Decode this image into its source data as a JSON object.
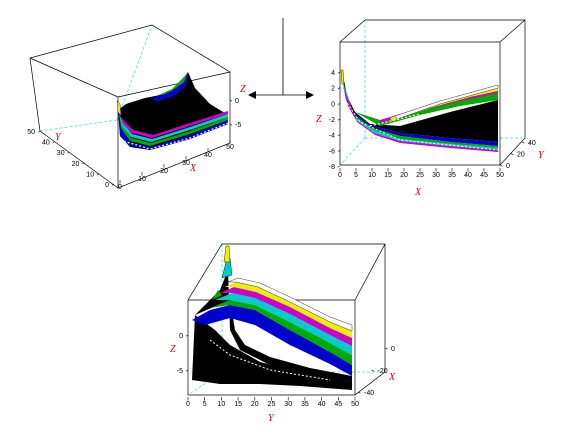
{
  "chart_data": [
    {
      "type": "surface3d",
      "view": "top-left",
      "xlabel": "X",
      "ylabel": "Y",
      "zlabel": "Z",
      "x_ticks": [
        "0",
        "10",
        "20",
        "30",
        "40",
        "50"
      ],
      "y_ticks": [
        "0",
        "10",
        "20",
        "30",
        "40",
        "50"
      ],
      "z_ticks": [
        "0",
        "-5"
      ],
      "xlim": [
        0,
        50
      ],
      "ylim": [
        0,
        50
      ],
      "zlim": [
        -7,
        2
      ],
      "colormap": [
        "#000000",
        "#0000cc",
        "#00aa00",
        "#00cccc",
        "#cc0000",
        "#cc00cc",
        "#eeee00",
        "#ffffff"
      ]
    },
    {
      "type": "surface3d",
      "view": "top-right",
      "xlabel": "X",
      "ylabel": "Y",
      "zlabel": "Z",
      "x_ticks": [
        "0",
        "5",
        "10",
        "15",
        "20",
        "25",
        "30",
        "35",
        "40",
        "45",
        "50"
      ],
      "y_ticks": [
        "0",
        "20",
        "40"
      ],
      "z_ticks": [
        "4",
        "2",
        "0",
        "-2",
        "-4",
        "-6",
        "-8"
      ],
      "xlim": [
        0,
        50
      ],
      "ylim": [
        0,
        50
      ],
      "zlim": [
        -8,
        4
      ],
      "colormap": [
        "#000000",
        "#0000cc",
        "#00aa00",
        "#00cccc",
        "#cc0000",
        "#cc00cc",
        "#eeee00",
        "#ffffff"
      ]
    },
    {
      "type": "surface3d",
      "view": "bottom",
      "xlabel": "X",
      "ylabel": "Y",
      "zlabel": "Z",
      "x_ticks": [
        "0",
        "-20",
        "-40"
      ],
      "y_ticks": [
        "0",
        "5",
        "10",
        "15",
        "20",
        "25",
        "30",
        "35",
        "40",
        "45",
        "50"
      ],
      "z_ticks": [
        "0",
        "-5"
      ],
      "xlim": [
        -50,
        0
      ],
      "ylim": [
        0,
        50
      ],
      "zlim": [
        -8,
        5
      ],
      "colormap": [
        "#000000",
        "#0000cc",
        "#00aa00",
        "#00cccc",
        "#cc0000",
        "#cc00cc",
        "#eeee00",
        "#ffffff"
      ]
    }
  ]
}
